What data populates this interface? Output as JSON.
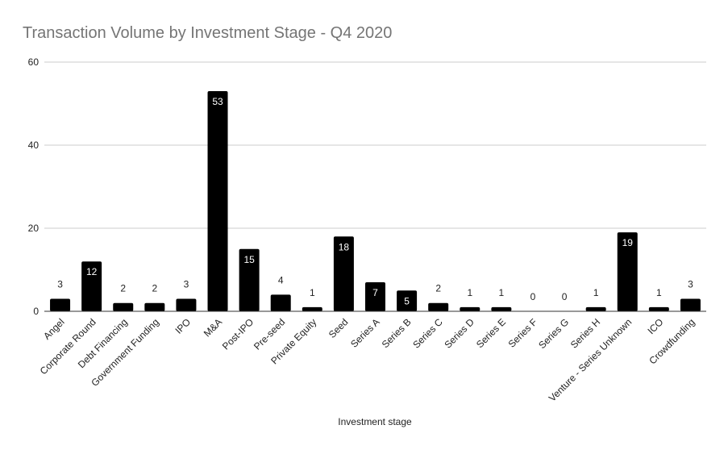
{
  "chart_data": {
    "type": "bar",
    "title": "Transaction Volume by Investment Stage - Q4 2020",
    "xlabel": "Investment stage",
    "ylabel": "",
    "ylim": [
      0,
      60
    ],
    "yticks": [
      0,
      20,
      40,
      60
    ],
    "grid": true,
    "legend": "none",
    "bar_color": "#000000",
    "grid_color": "#cccccc",
    "categories": [
      "Angel",
      "Corporate Round",
      "Debt Financing",
      "Government Funding",
      "IPO",
      "M&A",
      "Post-IPO",
      "Pre-seed",
      "Private Equity",
      "Seed",
      "Series A",
      "Series B",
      "Series C",
      "Series D",
      "Series E",
      "Series F",
      "Series G",
      "Series H",
      "Venture - Series Unknown",
      "ICO",
      "Crowdfunding"
    ],
    "values": [
      3,
      12,
      2,
      2,
      3,
      53,
      15,
      4,
      1,
      18,
      7,
      5,
      2,
      1,
      1,
      0,
      0,
      1,
      19,
      1,
      3
    ]
  }
}
